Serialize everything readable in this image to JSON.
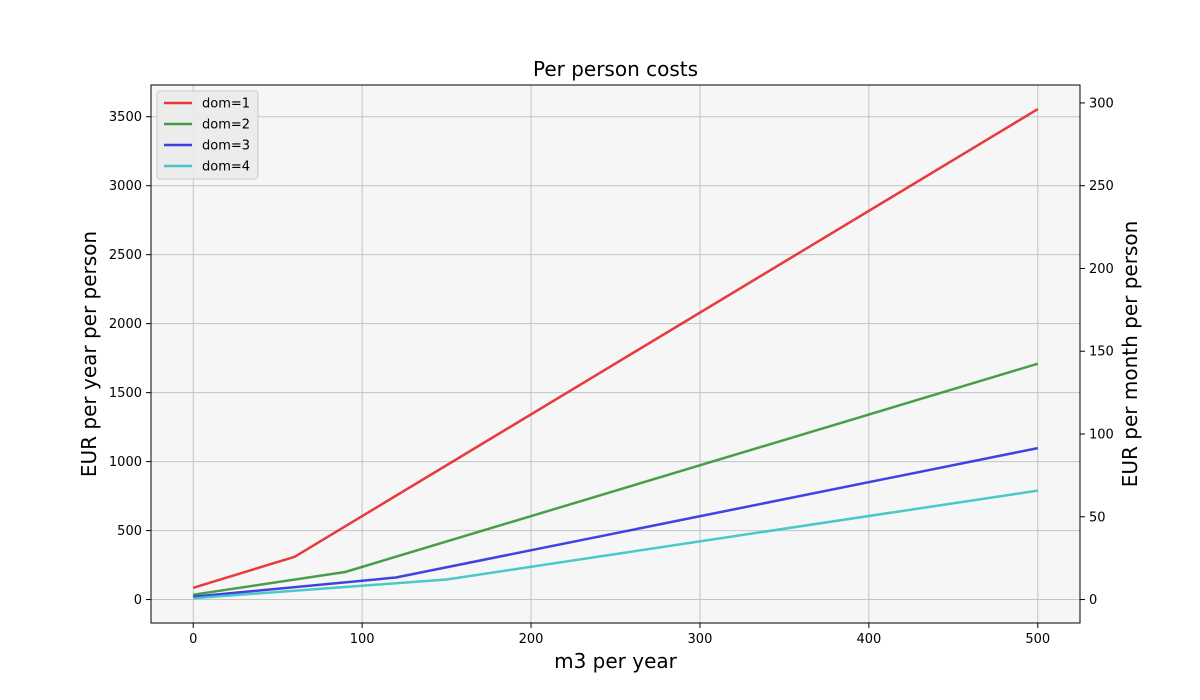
{
  "chart_data": {
    "type": "line",
    "title": "Per person costs",
    "xlabel": "m3 per year",
    "ylabel": "EUR per year per person",
    "y2label": "EUR per month per person",
    "xlim": [
      -25,
      525
    ],
    "ylim": [
      -170,
      3730
    ],
    "y2lim": [
      -14.17,
      310.83
    ],
    "xticks": [
      0,
      100,
      200,
      300,
      400,
      500
    ],
    "yticks": [
      0,
      500,
      1000,
      1500,
      2000,
      2500,
      3000,
      3500
    ],
    "y2ticks": [
      0,
      50,
      100,
      150,
      200,
      250,
      300
    ],
    "grid": true,
    "legend_position": "top-left",
    "series": [
      {
        "name": "dom=1",
        "color": "#e41a1c",
        "x": [
          0,
          60,
          500
        ],
        "y": [
          85,
          310,
          3555
        ]
      },
      {
        "name": "dom=2",
        "color": "#2a8f2a",
        "x": [
          0,
          90,
          500
        ],
        "y": [
          35,
          200,
          1710
        ]
      },
      {
        "name": "dom=3",
        "color": "#2222dd",
        "x": [
          0,
          120,
          500
        ],
        "y": [
          20,
          160,
          1098
        ]
      },
      {
        "name": "dom=4",
        "color": "#2ebfbf",
        "x": [
          0,
          150,
          500
        ],
        "y": [
          10,
          145,
          790
        ]
      }
    ]
  }
}
